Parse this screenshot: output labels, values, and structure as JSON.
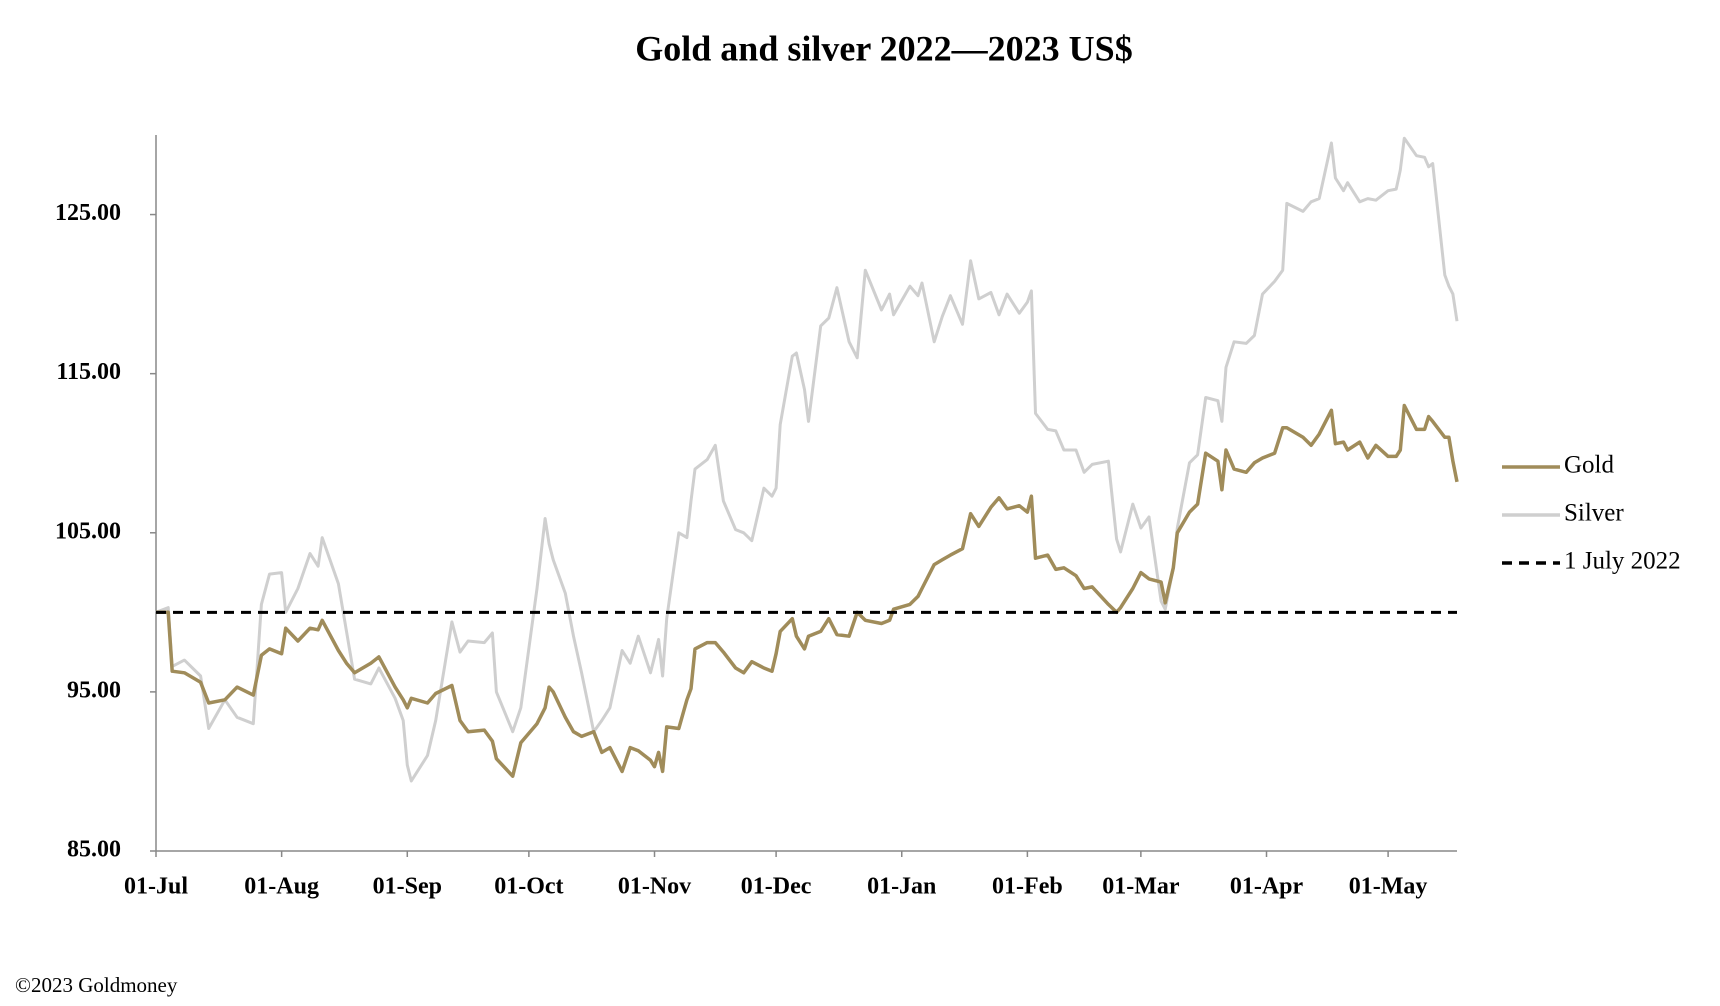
{
  "chart_data": {
    "type": "line",
    "title": "Gold and silver 2022—2023  US$",
    "copyright": "©2023 Goldmoney",
    "x": [
      "01-Jul",
      "04-Jul",
      "05-Jul",
      "08-Jul",
      "12-Jul",
      "14-Jul",
      "18-Jul",
      "21-Jul",
      "25-Jul",
      "27-Jul",
      "29-Jul",
      "01-Aug",
      "02-Aug",
      "05-Aug",
      "08-Aug",
      "10-Aug",
      "11-Aug",
      "15-Aug",
      "17-Aug",
      "19-Aug",
      "23-Aug",
      "25-Aug",
      "29-Aug",
      "31-Aug",
      "01-Sep",
      "02-Sep",
      "06-Sep",
      "08-Sep",
      "12-Sep",
      "14-Sep",
      "16-Sep",
      "20-Sep",
      "22-Sep",
      "23-Sep",
      "27-Sep",
      "29-Sep",
      "03-Oct",
      "05-Oct",
      "06-Oct",
      "07-Oct",
      "10-Oct",
      "12-Oct",
      "14-Oct",
      "17-Oct",
      "19-Oct",
      "21-Oct",
      "24-Oct",
      "26-Oct",
      "28-Oct",
      "31-Oct",
      "01-Nov",
      "02-Nov",
      "03-Nov",
      "04-Nov",
      "07-Nov",
      "09-Nov",
      "10-Nov",
      "11-Nov",
      "14-Nov",
      "16-Nov",
      "18-Nov",
      "21-Nov",
      "23-Nov",
      "25-Nov",
      "28-Nov",
      "30-Nov",
      "01-Dec",
      "02-Dec",
      "05-Dec",
      "06-Dec",
      "08-Dec",
      "09-Dec",
      "12-Dec",
      "14-Dec",
      "16-Dec",
      "19-Dec",
      "21-Dec",
      "23-Dec",
      "27-Dec",
      "29-Dec",
      "30-Dec",
      "03-Jan",
      "05-Jan",
      "06-Jan",
      "09-Jan",
      "11-Jan",
      "13-Jan",
      "16-Jan",
      "18-Jan",
      "20-Jan",
      "23-Jan",
      "25-Jan",
      "27-Jan",
      "30-Jan",
      "01-Feb",
      "02-Feb",
      "03-Feb",
      "06-Feb",
      "08-Feb",
      "10-Feb",
      "13-Feb",
      "15-Feb",
      "17-Feb",
      "21-Feb",
      "23-Feb",
      "24-Feb",
      "27-Feb",
      "01-Mar",
      "03-Mar",
      "06-Mar",
      "07-Mar",
      "09-Mar",
      "10-Mar",
      "13-Mar",
      "15-Mar",
      "17-Mar",
      "20-Mar",
      "21-Mar",
      "22-Mar",
      "24-Mar",
      "27-Mar",
      "29-Mar",
      "31-Mar",
      "03-Apr",
      "05-Apr",
      "06-Apr",
      "10-Apr",
      "12-Apr",
      "14-Apr",
      "17-Apr",
      "18-Apr",
      "20-Apr",
      "21-Apr",
      "24-Apr",
      "26-Apr",
      "28-Apr",
      "01-May",
      "03-May",
      "04-May",
      "05-May",
      "08-May",
      "10-May",
      "11-May",
      "12-May",
      "15-May",
      "16-May",
      "17-May",
      "18-May"
    ],
    "series": [
      {
        "name": "Gold",
        "color": "#a08c5a",
        "values": [
          100.0,
          100.0,
          96.3,
          96.2,
          95.6,
          94.3,
          94.5,
          95.3,
          94.8,
          97.3,
          97.7,
          97.4,
          99.0,
          98.2,
          99.0,
          98.9,
          99.5,
          97.6,
          96.8,
          96.2,
          96.8,
          97.2,
          95.3,
          94.5,
          94.0,
          94.6,
          94.3,
          94.9,
          95.4,
          93.2,
          92.5,
          92.6,
          91.9,
          90.8,
          89.7,
          91.8,
          93.0,
          94.0,
          95.3,
          95.0,
          93.4,
          92.5,
          92.2,
          92.5,
          91.2,
          91.5,
          90.0,
          91.5,
          91.3,
          90.7,
          90.3,
          91.2,
          90.0,
          92.8,
          92.7,
          94.5,
          95.2,
          97.7,
          98.1,
          98.1,
          97.5,
          96.5,
          96.2,
          96.9,
          96.5,
          96.3,
          97.4,
          98.8,
          99.6,
          98.5,
          97.7,
          98.5,
          98.8,
          99.6,
          98.6,
          98.5,
          100.0,
          99.5,
          99.3,
          99.5,
          100.2,
          100.5,
          101.0,
          101.5,
          103.0,
          103.3,
          103.6,
          104.0,
          106.2,
          105.4,
          106.6,
          107.2,
          106.5,
          106.7,
          106.3,
          107.3,
          103.4,
          103.6,
          102.7,
          102.8,
          102.3,
          101.5,
          101.6,
          100.5,
          100.0,
          100.3,
          101.5,
          102.5,
          102.1,
          101.9,
          100.6,
          102.8,
          105.0,
          106.3,
          106.8,
          110.0,
          109.5,
          107.7,
          110.2,
          109.0,
          108.8,
          109.4,
          109.7,
          110.0,
          111.6,
          111.6,
          111.0,
          110.5,
          111.2,
          112.7,
          110.6,
          110.7,
          110.2,
          110.7,
          109.7,
          110.5,
          109.8,
          109.8,
          110.2,
          113.0,
          111.5,
          111.5,
          112.3,
          112.0,
          111.0,
          111.0,
          109.5,
          108.2
        ]
      },
      {
        "name": "Silver",
        "color": "#cfcfcf",
        "values": [
          100.0,
          100.3,
          96.6,
          97.0,
          96.0,
          92.7,
          94.5,
          93.4,
          93.0,
          100.5,
          102.4,
          102.5,
          100.0,
          101.5,
          103.7,
          102.9,
          104.7,
          101.8,
          98.8,
          95.8,
          95.5,
          96.5,
          94.6,
          93.2,
          90.4,
          89.4,
          91.0,
          93.2,
          99.4,
          97.5,
          98.2,
          98.1,
          98.7,
          95.0,
          92.5,
          94.0,
          101.5,
          105.9,
          104.3,
          103.3,
          101.2,
          98.5,
          96.2,
          92.5,
          93.2,
          94.0,
          97.6,
          96.8,
          98.5,
          96.2,
          97.2,
          98.3,
          96.0,
          99.6,
          105.0,
          104.7,
          107.0,
          109.0,
          109.6,
          110.5,
          107.0,
          105.2,
          105.0,
          104.5,
          107.8,
          107.3,
          107.8,
          111.8,
          116.1,
          116.3,
          114.0,
          112.0,
          118.0,
          118.5,
          120.4,
          117.0,
          116.0,
          121.5,
          119.0,
          120.0,
          118.7,
          120.5,
          119.9,
          120.7,
          117.0,
          118.6,
          119.9,
          118.1,
          122.1,
          119.7,
          120.1,
          118.7,
          120.0,
          118.8,
          119.5,
          120.2,
          112.5,
          111.5,
          111.4,
          110.2,
          110.2,
          108.8,
          109.3,
          109.5,
          104.6,
          103.8,
          106.8,
          105.3,
          106.0,
          100.7,
          100.2,
          102.8,
          105.3,
          109.4,
          109.9,
          113.5,
          113.3,
          112.0,
          115.4,
          117.0,
          116.9,
          117.4,
          120.0,
          120.8,
          121.5,
          125.7,
          125.2,
          125.8,
          126.0,
          129.5,
          127.3,
          126.5,
          127.0,
          125.8,
          126.0,
          125.9,
          126.5,
          126.6,
          127.8,
          129.8,
          128.7,
          128.6,
          128.0,
          128.2,
          121.2,
          120.5,
          120.0,
          118.3
        ]
      }
    ],
    "reference_line": {
      "name": "1 July 2022",
      "value": 100,
      "color": "#000000"
    },
    "xlim": [
      "01-Jul",
      "18-May"
    ],
    "xticks": [
      "01-Jul",
      "01-Aug",
      "01-Sep",
      "01-Oct",
      "01-Nov",
      "01-Dec",
      "01-Jan",
      "01-Feb",
      "01-Mar",
      "01-Apr",
      "01-May"
    ],
    "ylim": [
      85,
      130
    ],
    "yticks": [
      {
        "value": 85,
        "label": "85.00"
      },
      {
        "value": 95,
        "label": "95.00"
      },
      {
        "value": 105,
        "label": "105.00"
      },
      {
        "value": 115,
        "label": "115.00"
      },
      {
        "value": 125,
        "label": "125.00"
      }
    ],
    "legend": "right"
  }
}
